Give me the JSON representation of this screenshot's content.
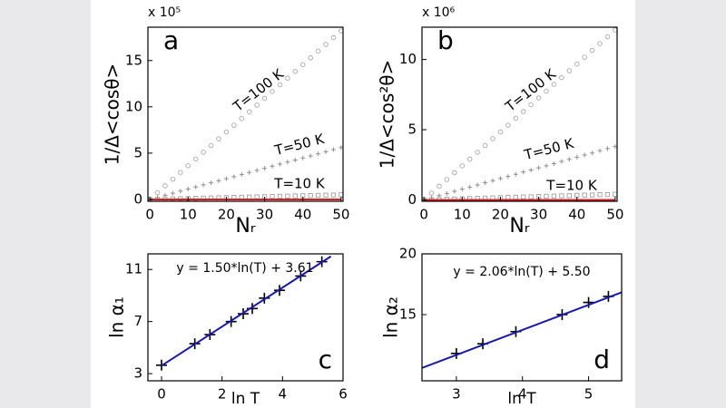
{
  "chart_data": [
    {
      "type": "scatter",
      "label": "a",
      "multiplier": "x 10⁵",
      "xlabel": "Nᵣ",
      "ylabel": "1/Δ<cosθ>",
      "x": [
        0,
        2,
        4,
        6,
        8,
        10,
        12,
        14,
        16,
        18,
        20,
        22,
        24,
        26,
        28,
        30,
        32,
        34,
        36,
        38,
        40,
        42,
        44,
        46,
        48,
        50
      ],
      "xlim": [
        -0.5,
        50.5
      ],
      "ylim": [
        -0.2,
        18.6
      ],
      "xticks": [
        0,
        10,
        20,
        30,
        40,
        50
      ],
      "yticks": [
        0,
        5,
        10,
        15
      ],
      "series": [
        {
          "name": "T=100 K",
          "color": "#a8a8a8",
          "marker": "circle",
          "values": [
            0,
            0.73,
            1.46,
            2.18,
            2.91,
            3.64,
            4.37,
            5.1,
            5.82,
            6.55,
            7.28,
            8.01,
            8.74,
            9.46,
            10.19,
            10.92,
            11.65,
            12.38,
            13.1,
            13.83,
            14.56,
            15.29,
            16.02,
            16.74,
            17.47,
            18.2
          ]
        },
        {
          "name": "T=50 K",
          "color": "#909090",
          "marker": "plus",
          "values": [
            0,
            0.22,
            0.45,
            0.67,
            0.9,
            1.12,
            1.34,
            1.57,
            1.79,
            2.02,
            2.24,
            2.46,
            2.69,
            2.91,
            3.14,
            3.36,
            3.58,
            3.81,
            4.03,
            4.26,
            4.48,
            4.7,
            4.93,
            5.15,
            5.38,
            5.6
          ]
        },
        {
          "name": "T=10 K",
          "color": "#a0a0a0",
          "marker": "square",
          "values": [
            0,
            0.02,
            0.04,
            0.06,
            0.08,
            0.1,
            0.12,
            0.14,
            0.16,
            0.18,
            0.2,
            0.22,
            0.24,
            0.26,
            0.28,
            0.3,
            0.32,
            0.34,
            0.36,
            0.38,
            0.4,
            0.42,
            0.44,
            0.46,
            0.48,
            0.5
          ]
        },
        {
          "color": "#d42020",
          "marker": "line",
          "x": [
            0,
            50
          ],
          "values": [
            0,
            0
          ]
        }
      ]
    },
    {
      "type": "scatter",
      "label": "b",
      "multiplier": "x 10⁶",
      "xlabel": "Nᵣ",
      "ylabel": "1/Δ<cos²θ>",
      "x": [
        0,
        2,
        4,
        6,
        8,
        10,
        12,
        14,
        16,
        18,
        20,
        22,
        24,
        26,
        28,
        30,
        32,
        34,
        36,
        38,
        40,
        42,
        44,
        46,
        48,
        50
      ],
      "xlim": [
        -0.5,
        50.5
      ],
      "ylim": [
        -0.1,
        12.3
      ],
      "xticks": [
        0,
        10,
        20,
        30,
        40,
        50
      ],
      "yticks": [
        0,
        5,
        10
      ],
      "series": [
        {
          "name": "T=100 K",
          "color": "#a8a8a8",
          "marker": "circle",
          "values": [
            0,
            0.48,
            0.97,
            1.45,
            1.94,
            2.42,
            2.9,
            3.39,
            3.87,
            4.36,
            4.84,
            5.32,
            5.81,
            6.29,
            6.78,
            7.26,
            7.74,
            8.23,
            8.71,
            9.2,
            9.68,
            10.16,
            10.65,
            11.13,
            11.62,
            12.1
          ]
        },
        {
          "name": "T=50 K",
          "color": "#909090",
          "marker": "plus",
          "values": [
            0,
            0.15,
            0.3,
            0.46,
            0.61,
            0.76,
            0.91,
            1.06,
            1.22,
            1.37,
            1.52,
            1.67,
            1.82,
            1.98,
            2.13,
            2.28,
            2.43,
            2.58,
            2.74,
            2.89,
            3.04,
            3.19,
            3.34,
            3.5,
            3.65,
            3.8
          ]
        },
        {
          "name": "T=10 K",
          "color": "#a0a0a0",
          "marker": "square",
          "values": [
            0,
            0.02,
            0.03,
            0.05,
            0.06,
            0.08,
            0.1,
            0.11,
            0.13,
            0.14,
            0.16,
            0.18,
            0.19,
            0.21,
            0.22,
            0.24,
            0.26,
            0.27,
            0.29,
            0.3,
            0.32,
            0.34,
            0.35,
            0.37,
            0.38,
            0.4
          ]
        },
        {
          "color": "#d42020",
          "marker": "line",
          "x": [
            0,
            50
          ],
          "values": [
            0,
            0
          ]
        }
      ]
    },
    {
      "type": "scatter",
      "label": "c",
      "xlabel": "ln T",
      "ylabel": "ln α₁",
      "xlim": [
        -0.45,
        6
      ],
      "ylim": [
        2.45,
        12.2
      ],
      "xticks": [
        0,
        2,
        4,
        6
      ],
      "yticks": [
        3,
        7,
        11
      ],
      "series": [
        {
          "color": "#000000",
          "marker": "plus",
          "x": [
            0,
            1.1,
            1.6,
            2.3,
            2.7,
            3.0,
            3.4,
            3.9,
            4.6,
            5.3
          ],
          "values": [
            3.65,
            5.3,
            6.0,
            7.0,
            7.6,
            8.0,
            8.8,
            9.4,
            10.5,
            11.6
          ]
        },
        {
          "name": "y = 1.50*ln(T) + 3.61",
          "color": "#1a1aa8",
          "marker": "line",
          "x": [
            0,
            5.6
          ],
          "values": [
            3.61,
            12.01
          ]
        }
      ]
    },
    {
      "type": "scatter",
      "label": "d",
      "xlabel": "ln T",
      "ylabel": "ln α₂",
      "xlim": [
        2.48,
        5.5
      ],
      "ylim": [
        9.55,
        20
      ],
      "xticks": [
        3,
        4,
        5
      ],
      "yticks": [
        15,
        20
      ],
      "series": [
        {
          "color": "#000000",
          "marker": "plus",
          "x": [
            3.0,
            3.4,
            3.9,
            4.6,
            5.0,
            5.3
          ],
          "values": [
            11.8,
            12.6,
            13.6,
            15.0,
            16.0,
            16.5
          ]
        },
        {
          "name": "y = 2.06*ln(T) + 5.50",
          "color": "#1a1aa8",
          "marker": "line",
          "x": [
            2.48,
            5.5
          ],
          "values": [
            10.61,
            16.83
          ]
        }
      ]
    }
  ]
}
